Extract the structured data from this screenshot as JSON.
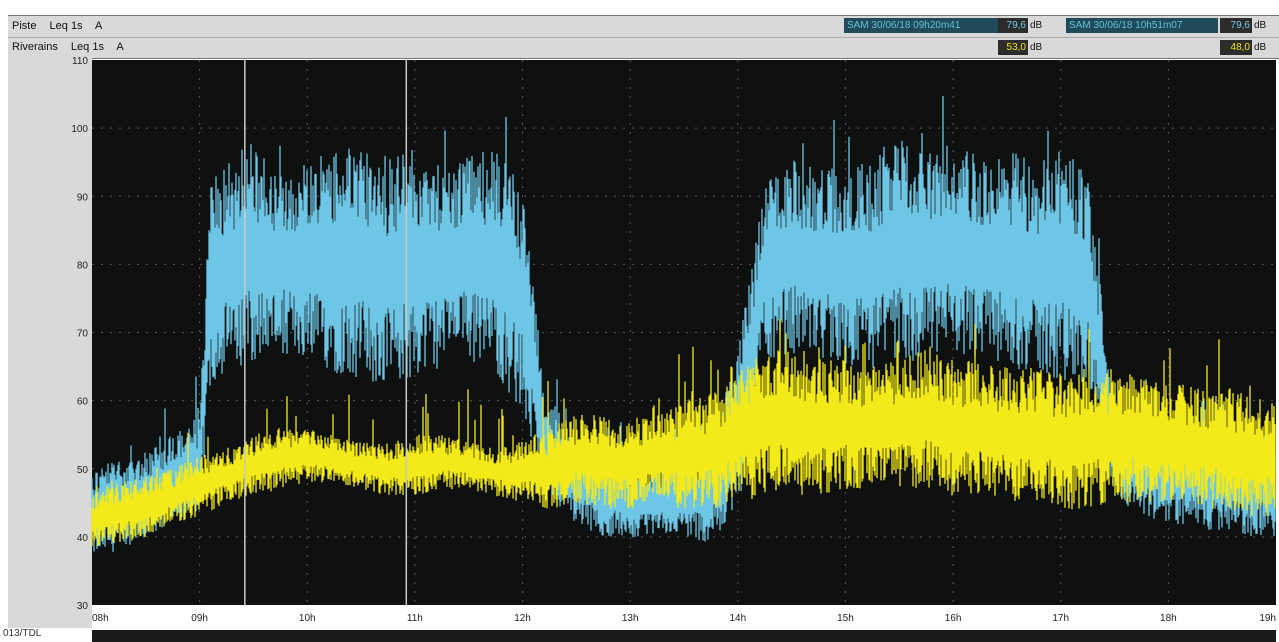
{
  "header": {
    "rows": [
      {
        "name": "Piste",
        "measure": "Leq 1s",
        "weighting": "A"
      },
      {
        "name": "Riverains",
        "measure": "Leq 1s",
        "weighting": "A"
      }
    ],
    "cursor1": {
      "label": "SAM 30/06/18 09h20m41",
      "value_top": "79,6",
      "value_bottom": "53,0",
      "unit": "dB"
    },
    "cursor2": {
      "label": "SAM 30/06/18 10h51m07",
      "value_top": "79,6",
      "value_bottom": "48,0",
      "unit": "dB"
    }
  },
  "footer": {
    "label": "013/TDL"
  },
  "colors": {
    "background": "#0f1111",
    "piste": "#6ec6e6",
    "riverains": "#f4ea1a",
    "cursor": "#c8c8c8"
  },
  "chart_data": {
    "type": "line",
    "title": "",
    "xlabel": "",
    "ylabel": "",
    "x_ticks": [
      "08h",
      "09h",
      "10h",
      "11h",
      "12h",
      "13h",
      "14h",
      "15h",
      "16h",
      "17h",
      "18h",
      "19h"
    ],
    "xlim": [
      8,
      19
    ],
    "ylim": [
      30,
      110
    ],
    "y_ticks": [
      30,
      40,
      50,
      60,
      70,
      80,
      90,
      100,
      110
    ],
    "grid": true,
    "cursors_hours": [
      9.42,
      10.92
    ],
    "series": [
      {
        "name": "Piste",
        "color": "#6ec6e6",
        "x": [
          8.0,
          8.25,
          8.5,
          8.75,
          9.0,
          9.1,
          9.25,
          9.5,
          9.75,
          10.0,
          10.25,
          10.5,
          10.75,
          11.0,
          11.25,
          11.5,
          11.75,
          12.0,
          12.2,
          12.5,
          12.75,
          13.0,
          13.25,
          13.5,
          13.75,
          14.0,
          14.25,
          14.5,
          14.75,
          15.0,
          15.25,
          15.5,
          15.75,
          16.0,
          16.25,
          16.5,
          16.75,
          17.0,
          17.25,
          17.5,
          17.75,
          18.0,
          18.25,
          18.5,
          18.75,
          19.0
        ],
        "low": [
          37,
          38,
          40,
          42,
          44,
          62,
          64,
          66,
          67,
          66,
          64,
          63,
          62,
          63,
          65,
          66,
          64,
          58,
          46,
          42,
          40,
          40,
          40,
          40,
          39,
          44,
          66,
          67,
          66,
          65,
          64,
          65,
          66,
          67,
          66,
          65,
          64,
          63,
          62,
          46,
          43,
          42,
          41,
          41,
          40,
          40
        ],
        "high": [
          50,
          52,
          53,
          55,
          58,
          92,
          95,
          97,
          94,
          95,
          97,
          97,
          96,
          97,
          95,
          96,
          97,
          92,
          62,
          54,
          52,
          50,
          50,
          52,
          53,
          68,
          92,
          96,
          94,
          95,
          96,
          99,
          97,
          98,
          96,
          97,
          95,
          98,
          93,
          60,
          57,
          56,
          56,
          55,
          55,
          55
        ]
      },
      {
        "name": "Riverains",
        "color": "#f4ea1a",
        "x": [
          8.0,
          8.25,
          8.5,
          8.75,
          9.0,
          9.25,
          9.5,
          9.75,
          10.0,
          10.25,
          10.5,
          10.75,
          11.0,
          11.25,
          11.5,
          11.75,
          12.0,
          12.25,
          12.5,
          12.75,
          13.0,
          13.25,
          13.5,
          13.75,
          14.0,
          14.25,
          14.5,
          14.75,
          15.0,
          15.25,
          15.5,
          15.75,
          16.0,
          16.25,
          16.5,
          16.75,
          17.0,
          17.25,
          17.5,
          17.75,
          18.0,
          18.25,
          18.5,
          18.75,
          19.0
        ],
        "low": [
          38,
          39,
          40,
          42,
          43,
          45,
          46,
          47,
          48,
          48,
          47,
          46,
          46,
          47,
          47,
          46,
          45,
          44,
          45,
          44,
          44,
          45,
          44,
          44,
          45,
          46,
          46,
          46,
          47,
          47,
          47,
          47,
          46,
          46,
          45,
          45,
          44,
          44,
          45,
          45,
          45,
          44,
          44,
          43,
          43
        ],
        "high": [
          47,
          48,
          49,
          50,
          52,
          53,
          55,
          56,
          56,
          55,
          54,
          54,
          55,
          55,
          54,
          53,
          54,
          56,
          58,
          58,
          57,
          58,
          60,
          61,
          64,
          68,
          68,
          66,
          66,
          65,
          66,
          68,
          66,
          66,
          65,
          65,
          64,
          65,
          64,
          64,
          63,
          62,
          62,
          61,
          60
        ]
      }
    ]
  }
}
